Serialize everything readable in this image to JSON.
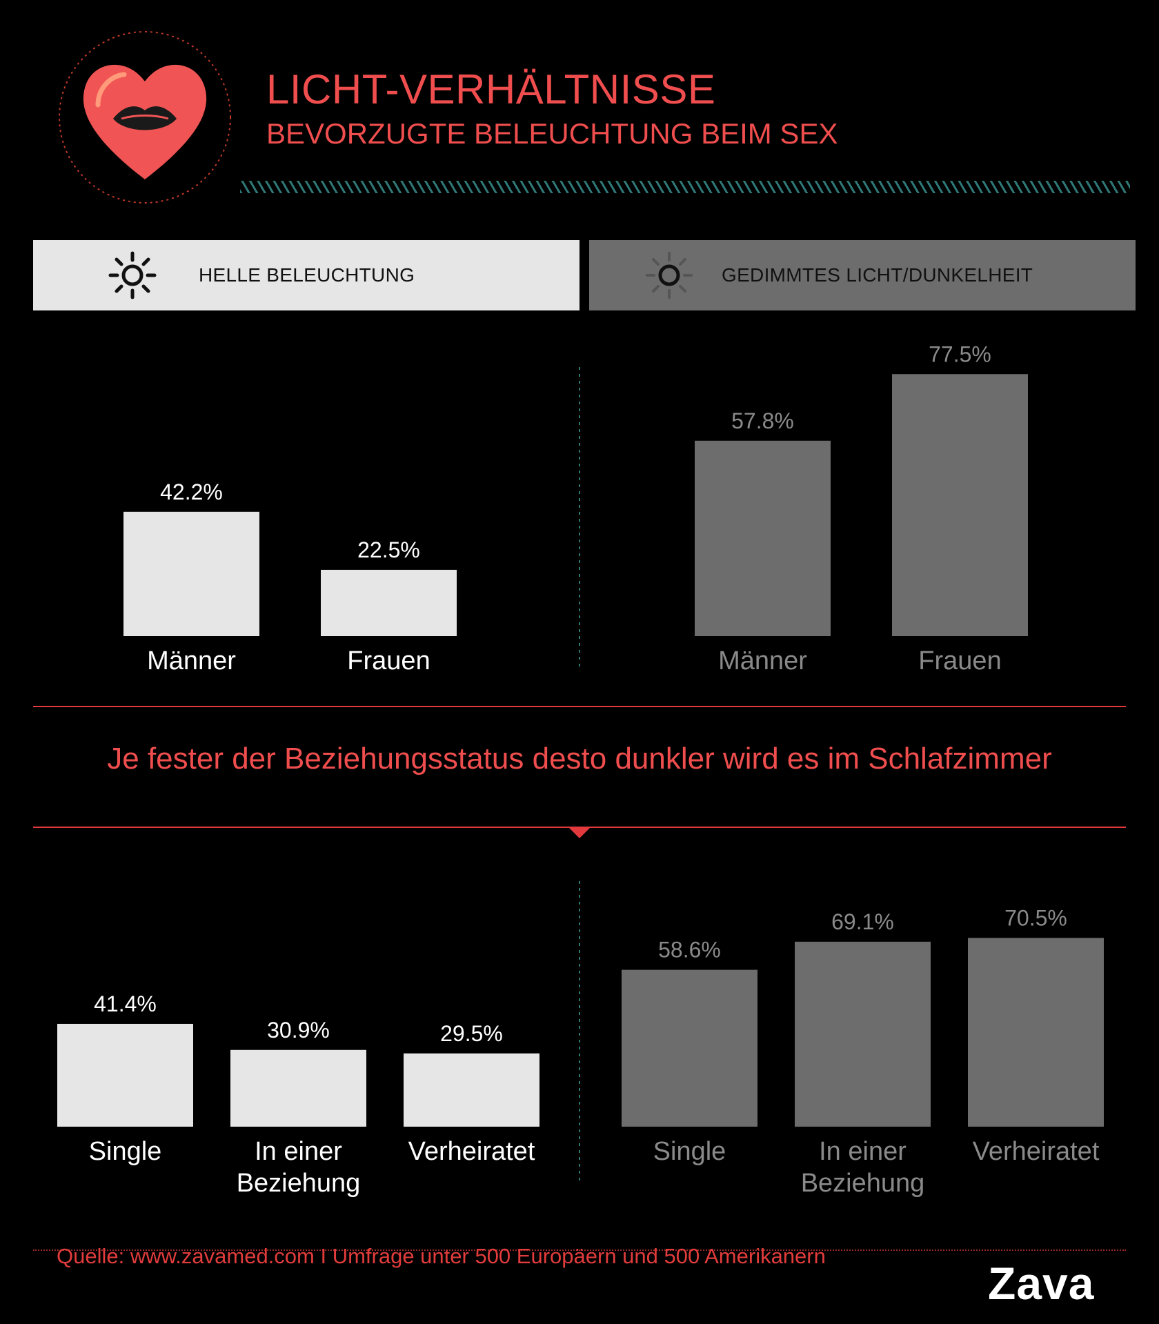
{
  "header": {
    "title": "LICHT-VERHÄLTNISSE",
    "subtitle": "BEVORZUGTE BELEUCHTUNG BEIM SEX"
  },
  "panels": {
    "light_label": "HELLE BELEUCHTUNG",
    "dark_label": "GEDIMMTES LICHT/DUNKELHEIT"
  },
  "headline": "Je fester der Beziehungsstatus desto dunkler wird es im Schlafzimmer",
  "footer": {
    "source": "Quelle: www.zavamed.com I Umfrage unter 500 Europäern und 500 Amerikanern",
    "brand": "Zava"
  },
  "colors": {
    "accent": "#f04e4e",
    "light_bar": "#e6e6e6",
    "dark_bar": "#6d6d6d",
    "dark_text": "#8a8a8a",
    "background": "#000000"
  },
  "chart_data": [
    {
      "type": "bar",
      "id": "gender-light",
      "categories": [
        "Männer",
        "Frauen"
      ],
      "values": [
        42.2,
        22.5
      ],
      "labels": [
        "42.2%",
        "22.5%"
      ],
      "ylim": [
        0,
        100
      ]
    },
    {
      "type": "bar",
      "id": "gender-dark",
      "categories": [
        "Männer",
        "Frauen"
      ],
      "values": [
        57.8,
        77.5
      ],
      "labels": [
        "57.8%",
        "77.5%"
      ],
      "ylim": [
        0,
        100
      ]
    },
    {
      "type": "bar",
      "id": "status-light",
      "categories": [
        "Single",
        "In einer Beziehung",
        "Verheiratet"
      ],
      "values": [
        41.4,
        30.9,
        29.5
      ],
      "labels": [
        "41.4%",
        "30.9%",
        "29.5%"
      ],
      "ylim": [
        0,
        100
      ]
    },
    {
      "type": "bar",
      "id": "status-dark",
      "categories": [
        "Single",
        "In einer Beziehung",
        "Verheiratet"
      ],
      "values": [
        58.6,
        69.1,
        70.5
      ],
      "labels": [
        "58.6%",
        "69.1%",
        "70.5%"
      ],
      "ylim": [
        0,
        100
      ]
    }
  ]
}
